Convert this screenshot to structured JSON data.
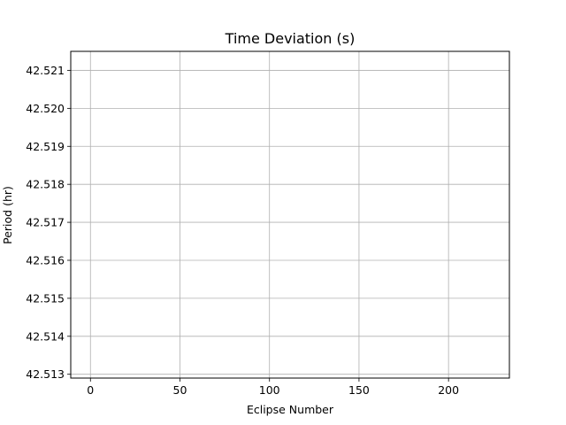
{
  "chart_data": {
    "type": "line",
    "title": "Time Deviation (s)",
    "xlabel": "Eclipse Number",
    "ylabel": "Period (hr)",
    "xlim": [
      -11,
      234
    ],
    "ylim": [
      42.5129,
      42.5215
    ],
    "xticks": [
      0,
      50,
      100,
      150,
      200
    ],
    "xtick_labels": [
      "0",
      "50",
      "100",
      "150",
      "200"
    ],
    "yticks": [
      42.513,
      42.514,
      42.515,
      42.516,
      42.517,
      42.518,
      42.519,
      42.52,
      42.521
    ],
    "ytick_labels": [
      "42.513",
      "42.514",
      "42.515",
      "42.516",
      "42.517",
      "42.518",
      "42.519",
      "42.520",
      "42.521"
    ],
    "grid": true,
    "series": []
  },
  "colors": {
    "grid": "#b0b0b0",
    "axes": "#000000",
    "background": "#ffffff"
  }
}
